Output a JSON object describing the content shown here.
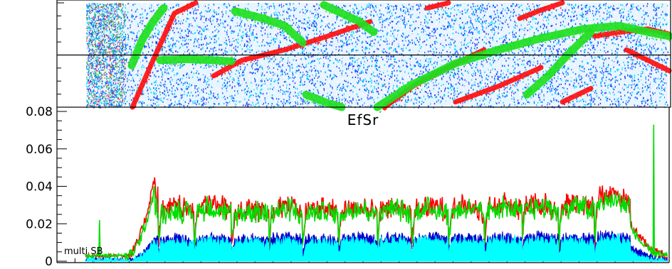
{
  "chart_data": [
    {
      "type": "heatmap",
      "panel": "top",
      "description_colors": {
        "background_dots": [
          "#1060ff",
          "#2040ff",
          "#00d8ff",
          "#ffffff"
        ],
        "red_traces": "#ff1010",
        "green_traces": "#20e020"
      },
      "xlim": [
        0,
        944
      ],
      "ylim": [
        0,
        1
      ],
      "red_traces": [
        {
          "x": [
            186,
            215,
            245,
            275
          ],
          "y": [
            0.0,
            0.45,
            0.9,
            1.0
          ]
        },
        {
          "x": [
            300,
            340,
            400,
            460,
            520
          ],
          "y": [
            0.3,
            0.45,
            0.55,
            0.68,
            0.82
          ]
        },
        {
          "x": [
            540,
            580,
            620,
            680
          ],
          "y": [
            0.0,
            0.2,
            0.35,
            0.55
          ]
        },
        {
          "x": [
            640,
            700,
            760
          ],
          "y": [
            0.05,
            0.2,
            0.38
          ]
        },
        {
          "x": [
            730,
            760,
            790
          ],
          "y": [
            0.85,
            0.93,
            1.0
          ]
        },
        {
          "x": [
            790,
            830
          ],
          "y": [
            0.05,
            0.18
          ]
        },
        {
          "x": [
            835,
            870,
            910,
            940
          ],
          "y": [
            0.68,
            0.72,
            0.75,
            0.7
          ]
        },
        {
          "x": [
            880,
            910,
            940
          ],
          "y": [
            0.55,
            0.45,
            0.35
          ]
        },
        {
          "x": [
            600,
            630
          ],
          "y": [
            0.95,
            1.0
          ]
        }
      ],
      "green_traces": [
        {
          "x": [
            185,
            200,
            215,
            230
          ],
          "y": [
            0.4,
            0.65,
            0.82,
            0.95
          ]
        },
        {
          "x": [
            225,
            260,
            300,
            325
          ],
          "y": [
            0.45,
            0.46,
            0.45,
            0.44
          ]
        },
        {
          "x": [
            330,
            370,
            400,
            425
          ],
          "y": [
            0.92,
            0.85,
            0.78,
            0.62
          ]
        },
        {
          "x": [
            455,
            480,
            505,
            525
          ],
          "y": [
            0.98,
            0.9,
            0.82,
            0.72
          ]
        },
        {
          "x": [
            430,
            460,
            480
          ],
          "y": [
            0.12,
            0.04,
            0.0
          ]
        },
        {
          "x": [
            530,
            580,
            640,
            700,
            760,
            820,
            870,
            910,
            940
          ],
          "y": [
            0.0,
            0.22,
            0.42,
            0.55,
            0.66,
            0.75,
            0.78,
            0.72,
            0.68
          ]
        },
        {
          "x": [
            740,
            770,
            800,
            830
          ],
          "y": [
            0.12,
            0.3,
            0.52,
            0.72
          ]
        }
      ],
      "gridlines_y": [
        0.5
      ]
    },
    {
      "type": "line",
      "title": "EfSr",
      "annotation": "multi SB",
      "xlim": [
        80,
        940
      ],
      "ylim": [
        0,
        0.08
      ],
      "y_ticks": [
        0,
        0.02,
        0.04,
        0.06,
        0.08
      ],
      "y_tick_labels": [
        "0",
        "0.02",
        "0.04",
        "0.06",
        "0.08"
      ],
      "x_tick_labels_shown": false,
      "segment_boundaries": [
        175,
        222,
        273,
        325,
        378,
        425,
        475,
        530,
        578,
        630,
        680,
        733,
        785,
        835,
        885
      ],
      "series": [
        {
          "color": "#ff0000",
          "baseline": 0.002,
          "ramp": {
            "x_start": 175,
            "x_end": 218,
            "y_end": 0.045
          },
          "segment_values": [
            0.045,
            0.031,
            0.033,
            0.03,
            0.032,
            0.031,
            0.031,
            0.031,
            0.032,
            0.032,
            0.033,
            0.033,
            0.034,
            0.038,
            0.021
          ],
          "tail": {
            "x": [
              885,
              905,
              920,
              940
            ],
            "y": [
              0.02,
              0.01,
              0.005,
              0.002
            ]
          }
        },
        {
          "color": "#00dd00",
          "baseline": 0.002,
          "ramp": {
            "x_start": 175,
            "x_end": 218,
            "y_end": 0.038
          },
          "segment_values": [
            0.035,
            0.029,
            0.031,
            0.029,
            0.03,
            0.029,
            0.03,
            0.03,
            0.03,
            0.03,
            0.031,
            0.031,
            0.032,
            0.035,
            0.02
          ],
          "tail": {
            "x": [
              885,
              905,
              920,
              940
            ],
            "y": [
              0.018,
              0.008,
              0.004,
              0.002
            ]
          },
          "spikes": [
            {
              "x": 140,
              "y": 0.022
            },
            {
              "x": 918,
              "y": 0.073
            }
          ]
        },
        {
          "color": "#0000cc",
          "baseline": 0.0,
          "ramp": {
            "x_start": 175,
            "x_end": 218,
            "y_end": 0.013
          },
          "segment_values": [
            0.013,
            0.013,
            0.014,
            0.013,
            0.014,
            0.013,
            0.014,
            0.014,
            0.014,
            0.014,
            0.014,
            0.014,
            0.014,
            0.015,
            0.008
          ],
          "tail": {
            "x": [
              885,
              905,
              920,
              940
            ],
            "y": [
              0.008,
              0.004,
              0.002,
              0.001
            ]
          }
        },
        {
          "color": "#00ffff",
          "baseline": 0.0,
          "ramp": {
            "x_start": 175,
            "x_end": 218,
            "y_end": 0.011
          },
          "segment_values": [
            0.011,
            0.011,
            0.012,
            0.011,
            0.012,
            0.011,
            0.012,
            0.012,
            0.012,
            0.012,
            0.012,
            0.012,
            0.012,
            0.013,
            0.006
          ],
          "tail": {
            "x": [
              885,
              905,
              920,
              940
            ],
            "y": [
              0.005,
              0.002,
              0.001,
              0.0
            ]
          }
        }
      ],
      "grid": false
    }
  ]
}
